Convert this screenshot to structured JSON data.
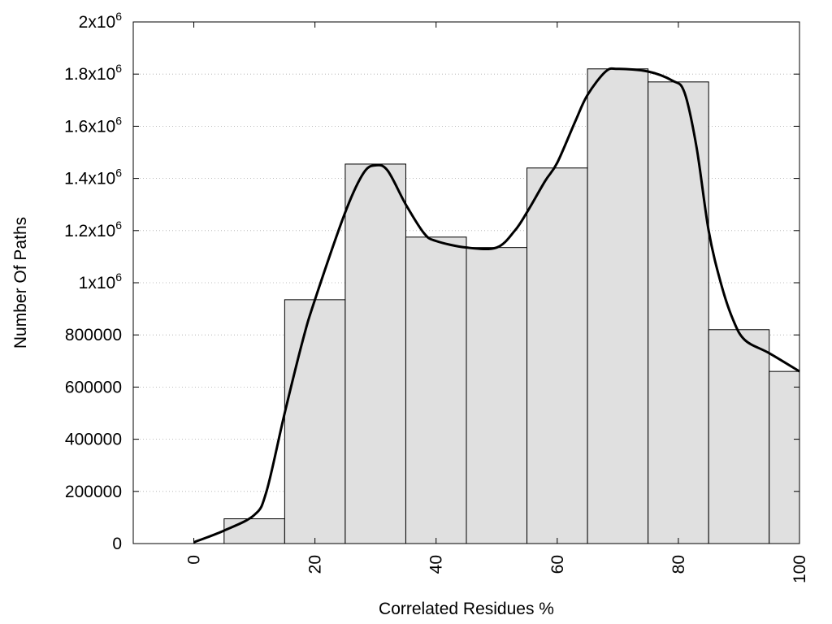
{
  "chart_data": {
    "type": "bar",
    "subtype": "histogram-with-smoothed-curve",
    "title": "",
    "xlabel": "Correlated Residues %",
    "ylabel": "Number Of Paths",
    "xlim": [
      -10,
      100
    ],
    "ylim": [
      0,
      2000000
    ],
    "x_ticks": [
      {
        "value": 0,
        "label": "0"
      },
      {
        "value": 20,
        "label": "20"
      },
      {
        "value": 40,
        "label": "40"
      },
      {
        "value": 60,
        "label": "60"
      },
      {
        "value": 80,
        "label": "80"
      },
      {
        "value": 100,
        "label": "100"
      }
    ],
    "y_ticks": [
      {
        "value": 0,
        "label": "0",
        "mantissa": "0",
        "sup": ""
      },
      {
        "value": 200000,
        "label": "200000",
        "mantissa": "200000",
        "sup": ""
      },
      {
        "value": 400000,
        "label": "400000",
        "mantissa": "400000",
        "sup": ""
      },
      {
        "value": 600000,
        "label": "600000",
        "mantissa": "600000",
        "sup": ""
      },
      {
        "value": 800000,
        "label": "800000",
        "mantissa": "800000",
        "sup": ""
      },
      {
        "value": 1000000,
        "label": "1x10^6",
        "mantissa": "1x10",
        "sup": "6"
      },
      {
        "value": 1200000,
        "label": "1.2x10^6",
        "mantissa": "1.2x10",
        "sup": "6"
      },
      {
        "value": 1400000,
        "label": "1.4x10^6",
        "mantissa": "1.4x10",
        "sup": "6"
      },
      {
        "value": 1600000,
        "label": "1.6x10^6",
        "mantissa": "1.6x10",
        "sup": "6"
      },
      {
        "value": 1800000,
        "label": "1.8x10^6",
        "mantissa": "1.8x10",
        "sup": "6"
      },
      {
        "value": 2000000,
        "label": "2x10^6",
        "mantissa": "2x10",
        "sup": "6"
      }
    ],
    "bin_width": 10,
    "bars": [
      {
        "center": 0,
        "value": 0
      },
      {
        "center": 10,
        "value": 95000
      },
      {
        "center": 20,
        "value": 935000
      },
      {
        "center": 30,
        "value": 1455000
      },
      {
        "center": 40,
        "value": 1175000
      },
      {
        "center": 50,
        "value": 1135000
      },
      {
        "center": 60,
        "value": 1440000
      },
      {
        "center": 70,
        "value": 1820000
      },
      {
        "center": 80,
        "value": 1770000
      },
      {
        "center": 90,
        "value": 820000
      },
      {
        "center": 100,
        "value": 660000
      }
    ],
    "curve": [
      [
        0,
        5000
      ],
      [
        5,
        50000
      ],
      [
        10,
        110000
      ],
      [
        12,
        200000
      ],
      [
        15,
        500000
      ],
      [
        18,
        780000
      ],
      [
        20,
        935000
      ],
      [
        25,
        1270000
      ],
      [
        28,
        1420000
      ],
      [
        30,
        1450000
      ],
      [
        32,
        1430000
      ],
      [
        35,
        1300000
      ],
      [
        38,
        1190000
      ],
      [
        40,
        1160000
      ],
      [
        45,
        1135000
      ],
      [
        50,
        1135000
      ],
      [
        53,
        1200000
      ],
      [
        55,
        1270000
      ],
      [
        58,
        1390000
      ],
      [
        60,
        1460000
      ],
      [
        63,
        1620000
      ],
      [
        65,
        1720000
      ],
      [
        68,
        1810000
      ],
      [
        70,
        1820000
      ],
      [
        75,
        1810000
      ],
      [
        79,
        1775000
      ],
      [
        81,
        1730000
      ],
      [
        83,
        1520000
      ],
      [
        85,
        1200000
      ],
      [
        87,
        1000000
      ],
      [
        89,
        860000
      ],
      [
        91,
        780000
      ],
      [
        95,
        730000
      ],
      [
        100,
        660000
      ]
    ],
    "bar_fill": "#e0e0e0",
    "bar_stroke": "#000000",
    "curve_color": "#000000",
    "grid": "horizontal dotted",
    "legend": "none"
  }
}
